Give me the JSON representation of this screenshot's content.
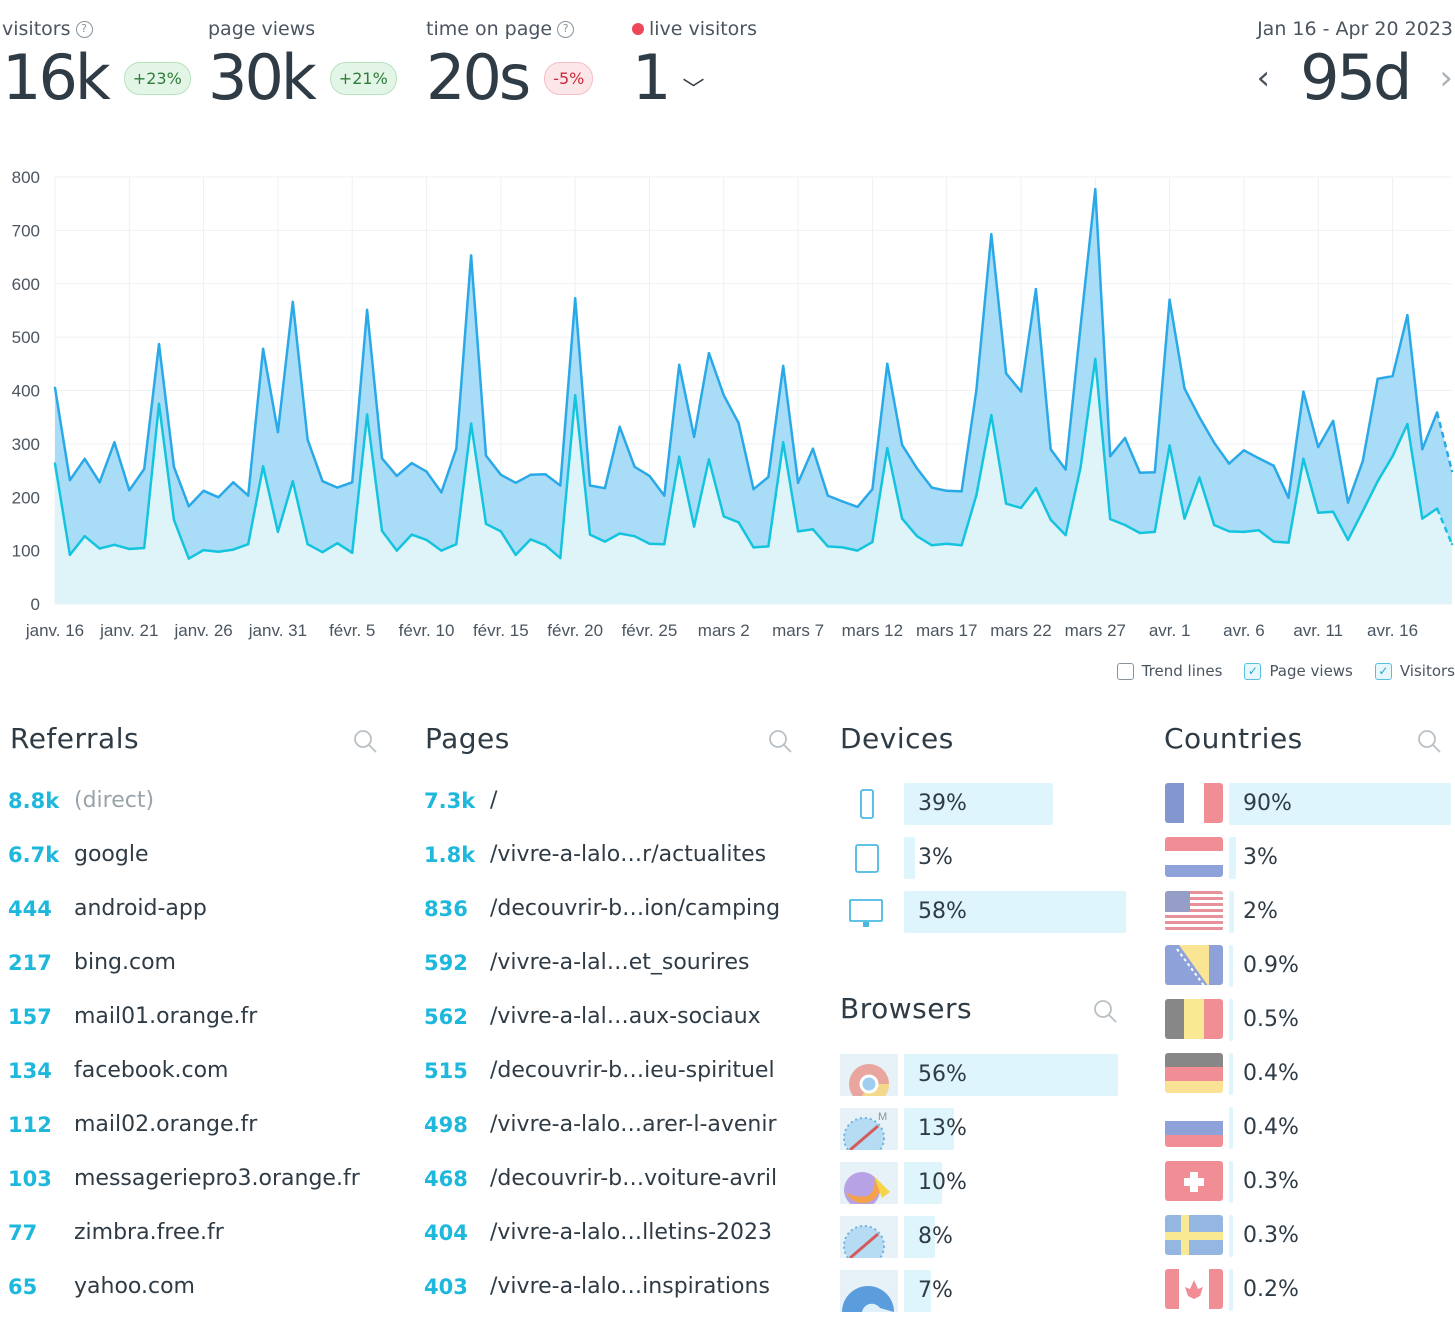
{
  "metrics": {
    "visitors": {
      "label": "visitors",
      "value": "16k",
      "change": "+23%"
    },
    "page_views": {
      "label": "page views",
      "value": "30k",
      "change": "+21%"
    },
    "time_on_page": {
      "label": "time on page",
      "value": "20s",
      "change": "-5%"
    },
    "live": {
      "label": "live visitors",
      "value": "1"
    }
  },
  "range": {
    "label": "Jan 16 - Apr 20 2023",
    "value": "95d"
  },
  "chart_data": {
    "type": "area",
    "ylim": [
      0,
      800
    ],
    "yticks": [
      "800",
      "700",
      "600",
      "500",
      "400",
      "300",
      "200",
      "100",
      "0"
    ],
    "xtick_labels": [
      "janv. 16",
      "janv. 21",
      "janv. 26",
      "janv. 31",
      "févr. 5",
      "févr. 10",
      "févr. 15",
      "févr. 20",
      "févr. 25",
      "mars 2",
      "mars 7",
      "mars 12",
      "mars 17",
      "mars 22",
      "mars 27",
      "avr. 1",
      "avr. 6",
      "avr. 11",
      "avr. 16"
    ],
    "grid": true,
    "legend_placement": "bottom-right",
    "series": [
      {
        "name": "Page views",
        "color": "#2aa9e8",
        "values": [
          405,
          232,
          272,
          228,
          303,
          213,
          253,
          487,
          257,
          183,
          212,
          200,
          228,
          203,
          478,
          322,
          566,
          308,
          230,
          218,
          228,
          551,
          273,
          240,
          264,
          248,
          209,
          291,
          653,
          278,
          242,
          227,
          242,
          243,
          222,
          573,
          222,
          217,
          332,
          257,
          240,
          203,
          448,
          313,
          470,
          391,
          339,
          215,
          238,
          446,
          227,
          291,
          203,
          192,
          182,
          215,
          450,
          298,
          254,
          218,
          212,
          211,
          401,
          693,
          432,
          398,
          590,
          290,
          252,
          519,
          777,
          277,
          311,
          246,
          247,
          570,
          404,
          350,
          302,
          263,
          288,
          273,
          259,
          199,
          398,
          294,
          343,
          190,
          268,
          422,
          427,
          541,
          290,
          359,
          249
        ]
      },
      {
        "name": "Visitors",
        "color": "#14c4df",
        "values": [
          263,
          92,
          127,
          104,
          111,
          103,
          105,
          375,
          158,
          85,
          101,
          98,
          102,
          112,
          258,
          135,
          230,
          112,
          97,
          114,
          96,
          355,
          137,
          100,
          130,
          120,
          100,
          112,
          338,
          150,
          136,
          92,
          121,
          110,
          86,
          391,
          130,
          117,
          132,
          127,
          113,
          112,
          276,
          145,
          271,
          164,
          153,
          106,
          108,
          303,
          136,
          140,
          108,
          106,
          100,
          116,
          292,
          160,
          127,
          110,
          113,
          110,
          204,
          354,
          188,
          180,
          217,
          158,
          129,
          255,
          459,
          159,
          148,
          133,
          135,
          297,
          160,
          237,
          148,
          136,
          135,
          138,
          117,
          115,
          272,
          171,
          173,
          120,
          174,
          230,
          277,
          337,
          160,
          179,
          112
        ]
      }
    ]
  },
  "legend": {
    "trend": "Trend lines",
    "page_views": "Page views",
    "visitors": "Visitors"
  },
  "referrals": {
    "title": "Referrals",
    "items": [
      {
        "count": "8.8k",
        "label": "(direct)"
      },
      {
        "count": "6.7k",
        "label": "google"
      },
      {
        "count": "444",
        "label": "android-app"
      },
      {
        "count": "217",
        "label": "bing.com"
      },
      {
        "count": "157",
        "label": "mail01.orange.fr"
      },
      {
        "count": "134",
        "label": "facebook.com"
      },
      {
        "count": "112",
        "label": "mail02.orange.fr"
      },
      {
        "count": "103",
        "label": "messageriepro3.orange.fr"
      },
      {
        "count": "77",
        "label": "zimbra.free.fr"
      },
      {
        "count": "65",
        "label": "yahoo.com"
      }
    ]
  },
  "pages": {
    "title": "Pages",
    "items": [
      {
        "count": "7.3k",
        "label": "/"
      },
      {
        "count": "1.8k",
        "label": "/vivre-a-lalo…r/actualites"
      },
      {
        "count": "836",
        "label": "/decouvrir-b…ion/camping"
      },
      {
        "count": "592",
        "label": "/vivre-a-lal…et_sourires"
      },
      {
        "count": "562",
        "label": "/vivre-a-lal…aux-sociaux"
      },
      {
        "count": "515",
        "label": "/decouvrir-b…ieu-spirituel"
      },
      {
        "count": "498",
        "label": "/vivre-a-lalo…arer-l-avenir"
      },
      {
        "count": "468",
        "label": "/decouvrir-b…voiture-avril"
      },
      {
        "count": "404",
        "label": "/vivre-a-lalo…lletins-2023"
      },
      {
        "count": "403",
        "label": "/vivre-a-lalo…inspirations"
      }
    ]
  },
  "devices": {
    "title": "Devices",
    "items": [
      {
        "icon": "mobile-icon",
        "pct": "39%",
        "share": 0.39
      },
      {
        "icon": "tablet-icon",
        "pct": "3%",
        "share": 0.03
      },
      {
        "icon": "desktop-icon",
        "pct": "58%",
        "share": 0.58
      }
    ]
  },
  "browsers": {
    "title": "Browsers",
    "items": [
      {
        "icon": "chrome-icon",
        "pct": "56%",
        "share": 0.56
      },
      {
        "icon": "safari-mobile-icon",
        "pct": "13%",
        "share": 0.13
      },
      {
        "icon": "firefox-icon",
        "pct": "10%",
        "share": 0.1
      },
      {
        "icon": "safari-icon",
        "pct": "8%",
        "share": 0.08
      },
      {
        "icon": "edge-icon",
        "pct": "7%",
        "share": 0.07
      }
    ]
  },
  "countries": {
    "title": "Countries",
    "items": [
      {
        "icon": "france-flag-icon",
        "pct": "90%",
        "share": 0.9
      },
      {
        "icon": "netherlands-flag-icon",
        "pct": "3%",
        "share": 0.03
      },
      {
        "icon": "usa-flag-icon",
        "pct": "2%",
        "share": 0.02
      },
      {
        "icon": "bosnia-flag-icon",
        "pct": "0.9%",
        "share": 0.009
      },
      {
        "icon": "belgium-flag-icon",
        "pct": "0.5%",
        "share": 0.005
      },
      {
        "icon": "germany-flag-icon",
        "pct": "0.4%",
        "share": 0.004
      },
      {
        "icon": "russia-flag-icon",
        "pct": "0.4%",
        "share": 0.004
      },
      {
        "icon": "switzerland-flag-icon",
        "pct": "0.3%",
        "share": 0.003
      },
      {
        "icon": "sweden-flag-icon",
        "pct": "0.3%",
        "share": 0.003
      },
      {
        "icon": "canada-flag-icon",
        "pct": "0.2%",
        "share": 0.002
      }
    ]
  }
}
